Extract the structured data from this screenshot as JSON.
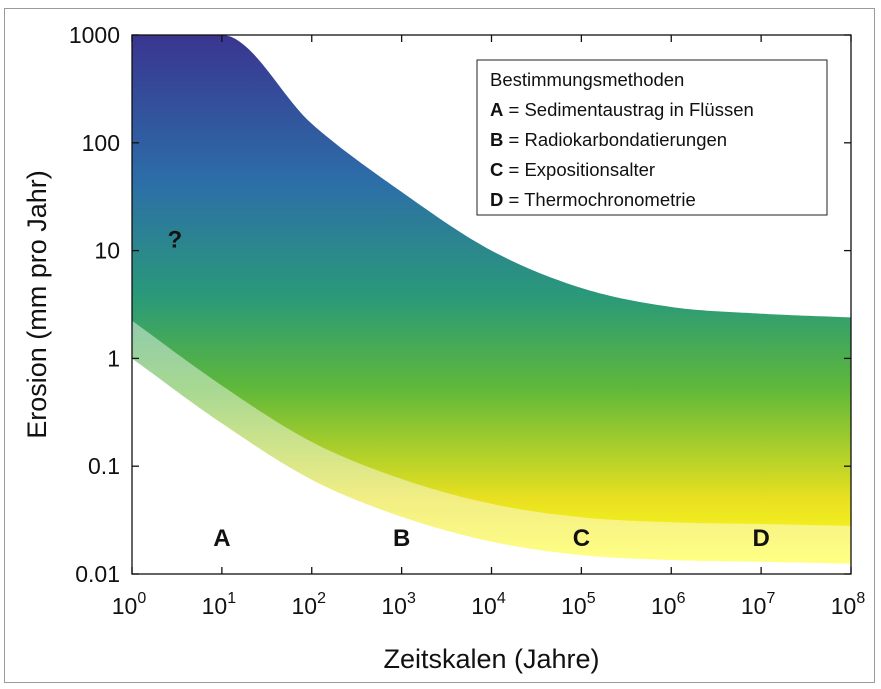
{
  "chart_data": {
    "type": "area",
    "xscale": "log",
    "yscale": "log",
    "xlim": [
      1,
      100000000
    ],
    "ylim": [
      0.01,
      1000
    ],
    "xlabel": "Zeitskalen (Jahre)",
    "ylabel": "Erosion (mm pro Jahr)",
    "x_ticks": [
      {
        "base": "10",
        "exp": "0"
      },
      {
        "base": "10",
        "exp": "1"
      },
      {
        "base": "10",
        "exp": "2"
      },
      {
        "base": "10",
        "exp": "3"
      },
      {
        "base": "10",
        "exp": "4"
      },
      {
        "base": "10",
        "exp": "5"
      },
      {
        "base": "10",
        "exp": "6"
      },
      {
        "base": "10",
        "exp": "7"
      },
      {
        "base": "10",
        "exp": "8"
      }
    ],
    "y_ticks": [
      "0.01",
      "0.1",
      "1",
      "10",
      "100",
      "1000"
    ],
    "band": {
      "x": [
        1,
        10,
        100,
        1000,
        10000,
        100000,
        1000000,
        10000000,
        100000000
      ],
      "upper": [
        1000,
        1000,
        150,
        35,
        10,
        4.5,
        3.0,
        2.6,
        2.4
      ],
      "lower": [
        1.0,
        0.25,
        0.075,
        0.034,
        0.02,
        0.015,
        0.0135,
        0.013,
        0.0125
      ],
      "colors": [
        "#ffff20",
        "#e8e020",
        "#5fb83a",
        "#2a9a78",
        "#2c6ea8",
        "#3a3590"
      ]
    },
    "annotations": [
      {
        "text": "?",
        "x": 3,
        "y": 13
      },
      {
        "text": "A",
        "x": 10,
        "y": 0.022
      },
      {
        "text": "B",
        "x": 1000,
        "y": 0.022
      },
      {
        "text": "C",
        "x": 100000,
        "y": 0.022
      },
      {
        "text": "D",
        "x": 10000000,
        "y": 0.022
      }
    ],
    "legend": {
      "position": "top-right",
      "title": "Bestimmungsmethoden",
      "entries": [
        {
          "key": "A",
          "sep": " = ",
          "label": "Sedimentaustrag in Flüssen"
        },
        {
          "key": "B",
          "sep": " = ",
          "label": "Radiokarbondatierungen"
        },
        {
          "key": "C",
          "sep": " = ",
          "label": "Expositionsalter"
        },
        {
          "key": "D",
          "sep": " = ",
          "label": "Thermochronometrie"
        }
      ]
    }
  }
}
